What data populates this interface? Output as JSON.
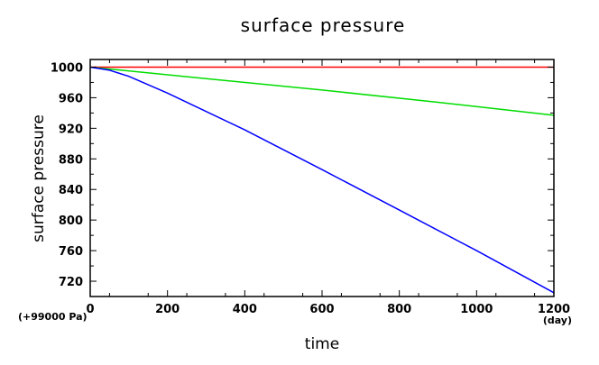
{
  "chart_data": {
    "type": "line",
    "title": "surface pressure",
    "xlabel": "time",
    "ylabel": "surface pressure",
    "x_unit": "(day)",
    "y_unit": "(+99000 Pa)",
    "xlim": [
      0,
      1200
    ],
    "ylim": [
      700,
      1010
    ],
    "x_ticks": [
      0,
      200,
      400,
      600,
      800,
      1000,
      1200
    ],
    "y_ticks": [
      720,
      760,
      800,
      840,
      880,
      920,
      960,
      1000
    ],
    "grid": false,
    "series": [
      {
        "color": "#ff0000",
        "x": [
          0,
          1200
        ],
        "y": [
          1000,
          1000
        ]
      },
      {
        "color": "#00dd00",
        "x": [
          0,
          300,
          600,
          900,
          1200
        ],
        "y": [
          1000,
          985,
          970,
          954,
          937
        ]
      },
      {
        "color": "#0000ff",
        "x": [
          0,
          50,
          100,
          200,
          400,
          600,
          800,
          1000,
          1200
        ],
        "y": [
          1000,
          996,
          988,
          966,
          918,
          866,
          813,
          760,
          705
        ]
      }
    ]
  }
}
